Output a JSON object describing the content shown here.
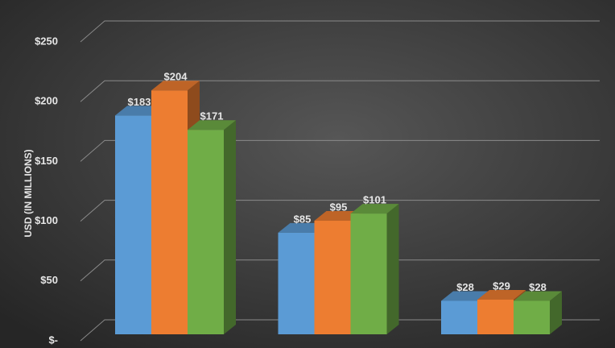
{
  "chart_data": {
    "type": "bar3d",
    "y_label": "USD (IN MILLIONS)",
    "categories": [
      null,
      null,
      null
    ],
    "series": [
      {
        "color": "#5b9bd5",
        "values": [
          183,
          85,
          28
        ],
        "value_labels": [
          "$183",
          "$85",
          "$28"
        ]
      },
      {
        "color": "#ed7d31",
        "values": [
          204,
          95,
          29
        ],
        "value_labels": [
          "$204",
          "$95",
          "$29"
        ]
      },
      {
        "color": "#70ad47",
        "values": [
          171,
          101,
          28
        ],
        "value_labels": [
          "$171",
          "$101",
          "$28"
        ]
      }
    ],
    "ylim": [
      0,
      250
    ],
    "yticks": [
      {
        "value": 0,
        "label": "$-"
      },
      {
        "value": 50,
        "label": "$50"
      },
      {
        "value": 100,
        "label": "$100"
      },
      {
        "value": 150,
        "label": "$150"
      },
      {
        "value": 200,
        "label": "$200"
      },
      {
        "value": 250,
        "label": "$250"
      }
    ],
    "grid": true
  }
}
